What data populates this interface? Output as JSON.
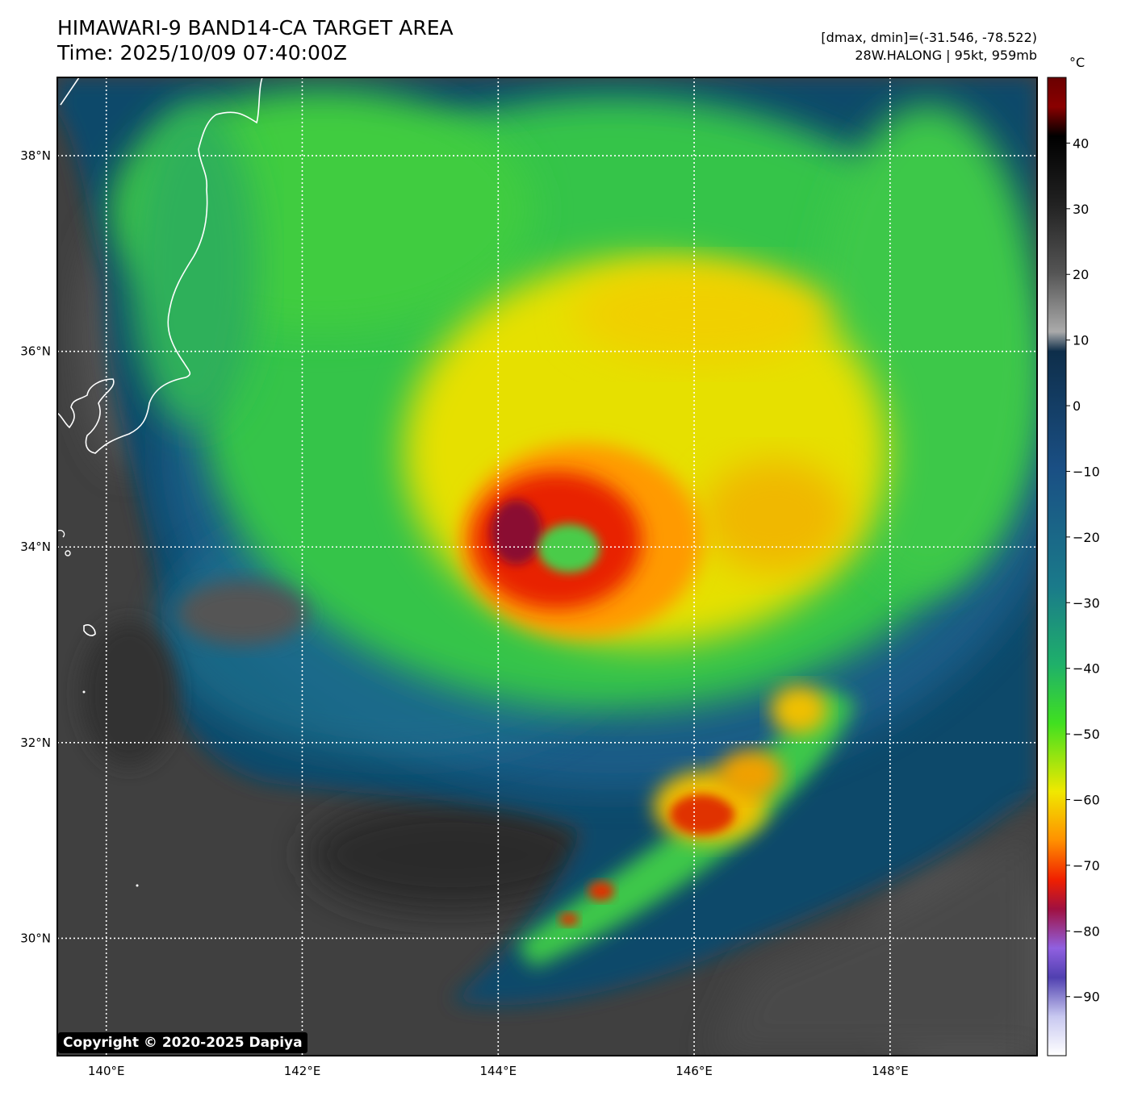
{
  "header": {
    "title_line1": "HIMAWARI-9 BAND14-CA TARGET AREA",
    "title_line2": "Time: 2025/10/09 07:40:00Z",
    "info_line1": "[dmax, dmin]=(-31.546, -78.522)",
    "info_line2": "28W.HALONG | 95kt, 959mb"
  },
  "colorbar": {
    "unit": "°C",
    "range": [
      -99,
      50
    ],
    "ticks": [
      40,
      30,
      20,
      10,
      0,
      -10,
      -20,
      -30,
      -40,
      -50,
      -60,
      -70,
      -80,
      -90
    ],
    "tick_labels": [
      "40",
      "30",
      "20",
      "10",
      "0",
      "−10",
      "−20",
      "−30",
      "−40",
      "−50",
      "−60",
      "−70",
      "−80",
      "−90"
    ]
  },
  "map": {
    "lon_range": [
      139.5,
      149.5
    ],
    "lat_range": [
      28.8,
      38.8
    ],
    "lon_ticks": [
      140,
      142,
      144,
      146,
      148
    ],
    "lon_labels": [
      "140°E",
      "142°E",
      "144°E",
      "146°E",
      "148°E"
    ],
    "lat_ticks": [
      30,
      32,
      34,
      36,
      38
    ],
    "lat_labels": [
      "30°N",
      "32°N",
      "34°N",
      "36°N",
      "38°N"
    ],
    "storm_center": {
      "lon": 144.5,
      "lat": 34.0
    },
    "colors": {
      "clear": "#444444",
      "ocean_shallow": "#0d4a6a",
      "cold_band": "#38d04a",
      "cold_top": "#f0e000",
      "hot_core": "#e02000",
      "coast": "#ffffff"
    }
  },
  "footer": {
    "copyright": "Copyright © 2020-2025 Dapiya"
  }
}
